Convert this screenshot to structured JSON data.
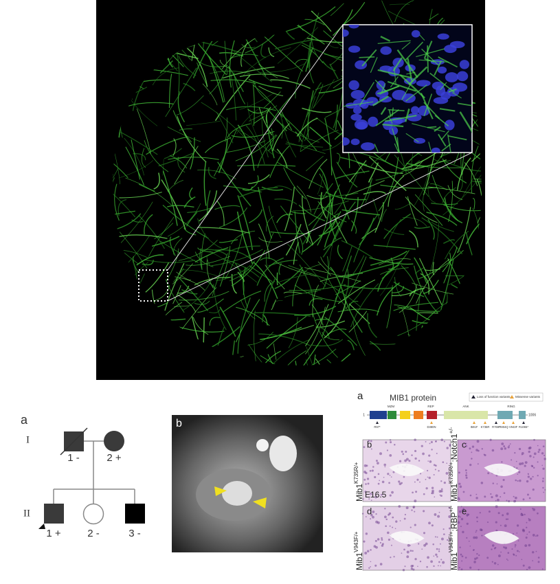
{
  "top_image": {
    "alt": "Green fluorescent fiber network with zoomed inset"
  },
  "pedigree": {
    "panel": "a",
    "generations": [
      "I",
      "II"
    ],
    "members": [
      {
        "label": "1 -"
      },
      {
        "label": "2 +"
      },
      {
        "label": "1 +"
      },
      {
        "label": "2 -"
      },
      {
        "label": "3 -"
      }
    ]
  },
  "mri": {
    "panel": "b"
  },
  "protein": {
    "panel": "a",
    "title": "MIB1 protein",
    "legend": [
      "Loss of function variants",
      "Missense variants"
    ],
    "domains": [
      "MZM",
      "REP",
      "ANK",
      "RING"
    ],
    "start": "1",
    "end": "1006",
    "variants": [
      "R97*",
      "D380N",
      "I591F",
      "K735R",
      "R769*",
      "R804Q",
      "V943F",
      "R1065*"
    ],
    "panels": [
      {
        "letter": "b",
        "base": "Mib1",
        "sup": "K735R/+",
        "stage": "E16.5"
      },
      {
        "letter": "c",
        "base": "Mib1",
        "sup": "K735R/+",
        "base2": ";Notch1",
        "sup2": "+/-"
      },
      {
        "letter": "d",
        "base": "Mib1",
        "sup": "V943F/+"
      },
      {
        "letter": "e",
        "base": "Mib1",
        "sup": "V943F/+",
        "base2": ";RBP",
        "sup2": "+/-"
      }
    ]
  }
}
